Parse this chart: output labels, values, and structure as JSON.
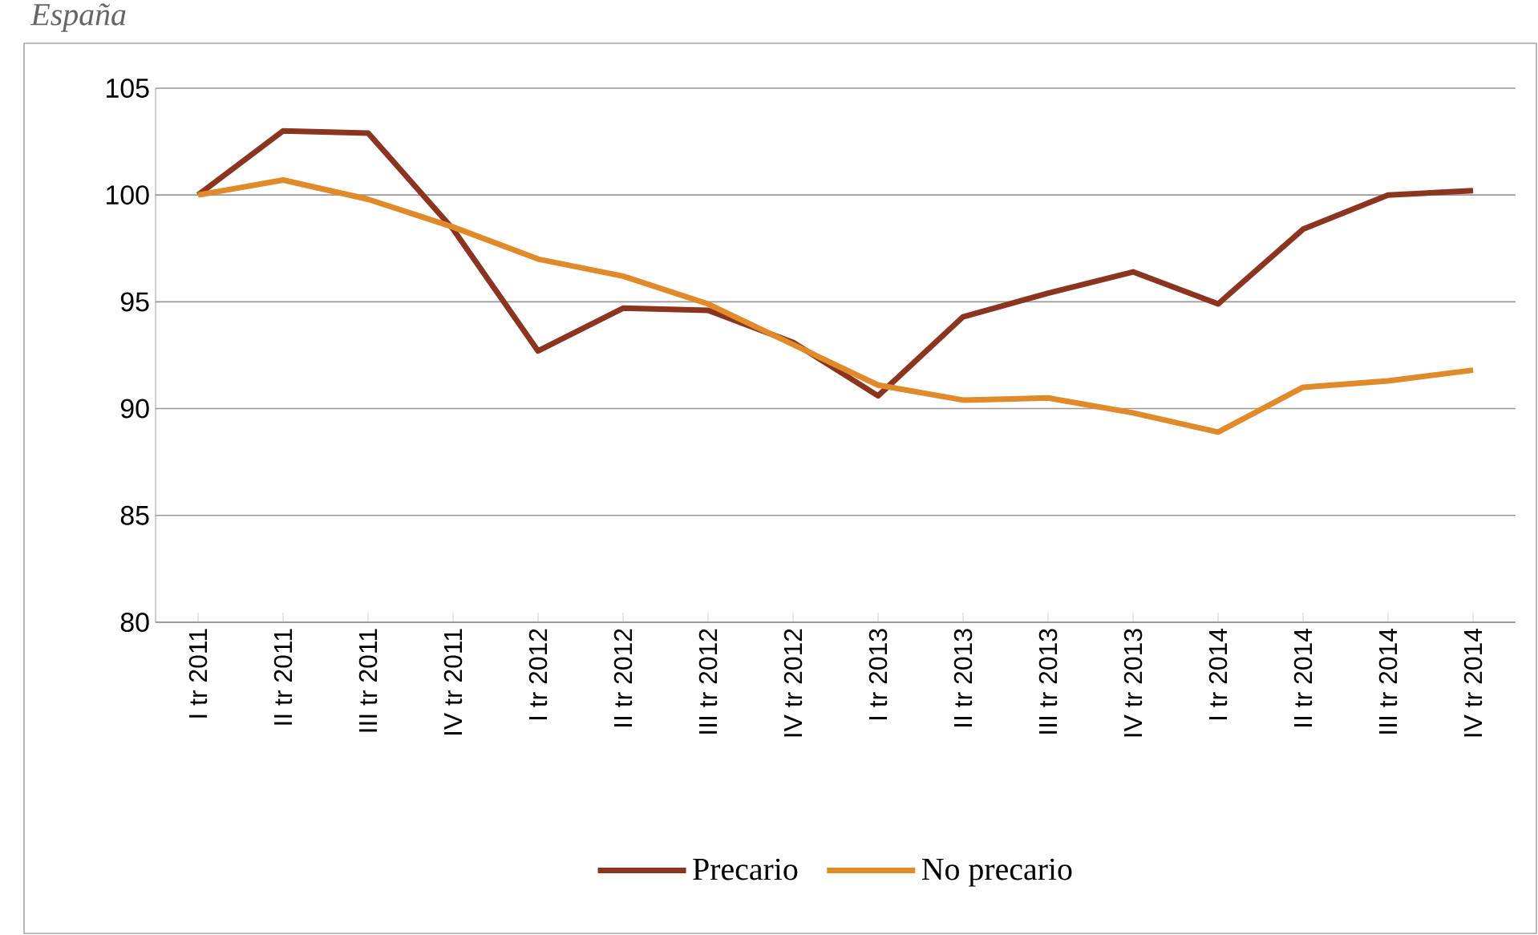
{
  "chart_data": {
    "type": "line",
    "title": "España",
    "categories": [
      "I tr 2011",
      "II tr 2011",
      "III tr 2011",
      "IV tr 2011",
      "I tr 2012",
      "II tr 2012",
      "III tr 2012",
      "IV tr 2012",
      "I tr 2013",
      "II tr 2013",
      "III tr 2013",
      "IV tr 2013",
      "I tr 2014",
      "II tr 2014",
      "III tr 2014",
      "IV tr 2014"
    ],
    "series": [
      {
        "name": "Precario",
        "color": "#8b3420",
        "values": [
          100,
          103,
          102.9,
          98.4,
          92.7,
          94.7,
          94.6,
          93.1,
          90.6,
          94.3,
          95.4,
          96.4,
          94.9,
          98.4,
          100,
          100.2
        ]
      },
      {
        "name": "No precario",
        "color": "#e08a2a",
        "values": [
          100,
          100.7,
          99.8,
          98.5,
          97.0,
          96.2,
          94.9,
          93.0,
          91.1,
          90.4,
          90.5,
          89.8,
          88.9,
          91.0,
          91.3,
          91.8
        ]
      }
    ],
    "ylim": [
      80,
      105
    ],
    "yticks": [
      80,
      85,
      90,
      95,
      100,
      105
    ],
    "grid": "y",
    "legend": "bottom",
    "marker": "none",
    "line_style": "solid"
  }
}
